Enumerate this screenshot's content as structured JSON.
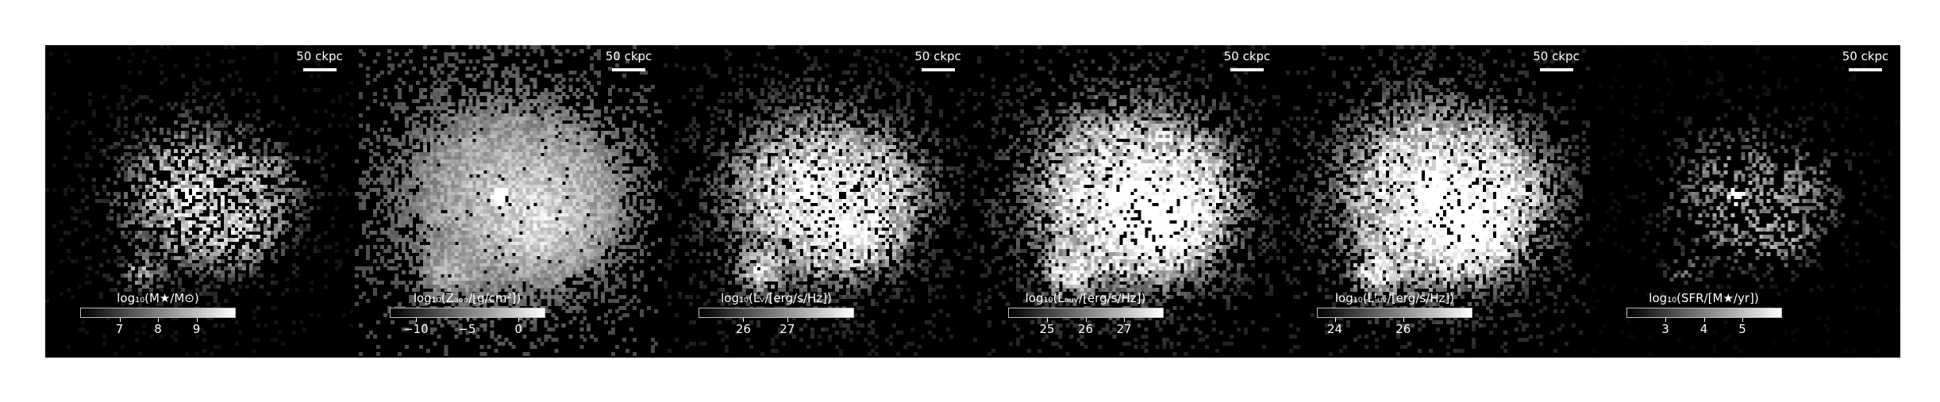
{
  "panels": [
    {
      "scalebar_label": "50 ckpc",
      "colorbar": {
        "label": "log₁₀(M★/M⊙)",
        "min": 6.0,
        "max": 10.0,
        "ticks": [
          {
            "value": 7,
            "label": "7"
          },
          {
            "value": 8,
            "label": "8"
          },
          {
            "value": 9,
            "label": "9"
          }
        ]
      }
    },
    {
      "scalebar_label": "50 ckpc",
      "colorbar": {
        "label": "log₁₀(Zₐₒₒ/[g/cm²])",
        "min": -12.5,
        "max": 2.5,
        "ticks": [
          {
            "value": -10,
            "label": "−10"
          },
          {
            "value": -5,
            "label": "−5"
          },
          {
            "value": 0,
            "label": "0"
          }
        ]
      }
    },
    {
      "scalebar_label": "50 ckpc",
      "colorbar": {
        "label": "log₁₀(Lᵥ/[erg/s/Hz])",
        "min": 25.0,
        "max": 28.5,
        "ticks": [
          {
            "value": 26,
            "label": "26"
          },
          {
            "value": 27,
            "label": "27"
          }
        ]
      }
    },
    {
      "scalebar_label": "50 ckpc",
      "colorbar": {
        "label": "log₁₀(Lₙᵤᵥ/[erg/s/Hz])",
        "min": 24.0,
        "max": 28.0,
        "ticks": [
          {
            "value": 25,
            "label": "25"
          },
          {
            "value": 26,
            "label": "26"
          },
          {
            "value": 27,
            "label": "27"
          }
        ]
      }
    },
    {
      "scalebar_label": "50 ckpc",
      "colorbar": {
        "label": "log₁₀(Lᶠᵤᵥ/[erg/s/Hz])",
        "min": 23.5,
        "max": 28.0,
        "ticks": [
          {
            "value": 24,
            "label": "24"
          },
          {
            "value": 26,
            "label": "26"
          }
        ]
      }
    },
    {
      "scalebar_label": "50 ckpc",
      "colorbar": {
        "label": "log₁₀(SFR/[M★/yr])",
        "min": 2.0,
        "max": 6.0,
        "ticks": [
          {
            "value": 3,
            "label": "3"
          },
          {
            "value": 4,
            "label": "4"
          },
          {
            "value": 5,
            "label": "5"
          }
        ]
      }
    }
  ]
}
